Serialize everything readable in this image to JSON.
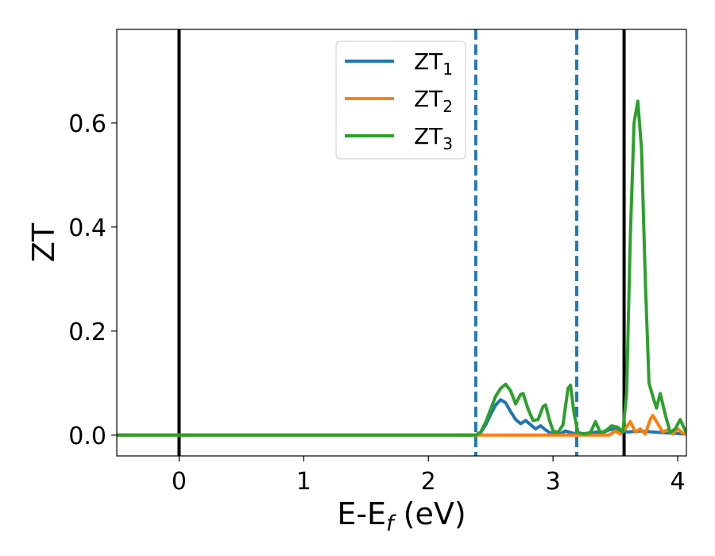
{
  "chart_data": {
    "type": "line",
    "xlabel": "E-E",
    "xlabel_sub": "f",
    "xlabel_unit": " (eV)",
    "ylabel": "ZT",
    "xlim": [
      -0.5,
      4.07
    ],
    "ylim": [
      -0.04,
      0.78
    ],
    "xticks": [
      0,
      1,
      2,
      3,
      4
    ],
    "xtick_labels": [
      "0",
      "1",
      "2",
      "3",
      "4"
    ],
    "yticks": [
      0.0,
      0.2,
      0.4,
      0.6
    ],
    "ytick_labels": [
      "0.0",
      "0.2",
      "0.4",
      "0.6"
    ],
    "legend_position": "upper-center",
    "grid": false,
    "vertical_lines": [
      {
        "x": 0.0,
        "style": "solid",
        "color": "#000000"
      },
      {
        "x": 3.57,
        "style": "solid",
        "color": "#000000"
      },
      {
        "x": 2.38,
        "style": "dashed",
        "color": "#1f77b4"
      },
      {
        "x": 3.19,
        "style": "dashed",
        "color": "#1f77b4"
      }
    ],
    "series": [
      {
        "name": "ZT",
        "name_sub": "1",
        "color": "#1f77b4",
        "x": [
          -0.5,
          2.38,
          2.42,
          2.46,
          2.5,
          2.54,
          2.58,
          2.62,
          2.66,
          2.7,
          2.74,
          2.78,
          2.82,
          2.86,
          2.9,
          2.94,
          2.98,
          3.02,
          3.06,
          3.1,
          3.14,
          3.19,
          3.25,
          3.3,
          3.35,
          3.4,
          3.45,
          3.5,
          3.55,
          3.6,
          3.7,
          3.8,
          4.07
        ],
        "y": [
          0,
          0,
          0.005,
          0.02,
          0.04,
          0.058,
          0.068,
          0.062,
          0.045,
          0.03,
          0.022,
          0.028,
          0.02,
          0.012,
          0.018,
          0.01,
          0.004,
          0.002,
          0.003,
          0.008,
          0.005,
          0.002,
          0.003,
          0.004,
          0.006,
          0.005,
          0.01,
          0.012,
          0.008,
          0.006,
          0.008,
          0.006,
          0.002
        ]
      },
      {
        "name": "ZT",
        "name_sub": "2",
        "color": "#ff7f0e",
        "x": [
          -0.5,
          3.45,
          3.5,
          3.54,
          3.58,
          3.62,
          3.66,
          3.7,
          3.74,
          3.78,
          3.8,
          3.84,
          3.88,
          3.92,
          3.96,
          4.0,
          4.04,
          4.07
        ],
        "y": [
          0,
          0,
          0.008,
          0.002,
          0.012,
          0.026,
          0.006,
          0.012,
          0.002,
          0.03,
          0.038,
          0.022,
          0.006,
          0.01,
          0.002,
          0.012,
          0.004,
          0.002
        ]
      },
      {
        "name": "ZT",
        "name_sub": "3",
        "color": "#2ca02c",
        "x": [
          -0.5,
          2.38,
          2.42,
          2.46,
          2.5,
          2.54,
          2.58,
          2.62,
          2.66,
          2.7,
          2.74,
          2.76,
          2.8,
          2.84,
          2.88,
          2.92,
          2.94,
          2.97,
          3.0,
          3.04,
          3.08,
          3.12,
          3.14,
          3.17,
          3.2,
          3.25,
          3.3,
          3.34,
          3.38,
          3.42,
          3.47,
          3.52,
          3.56,
          3.59,
          3.62,
          3.65,
          3.68,
          3.71,
          3.74,
          3.77,
          3.8,
          3.83,
          3.86,
          3.9,
          3.94,
          3.98,
          4.02,
          4.07
        ],
        "y": [
          0,
          0,
          0.006,
          0.025,
          0.05,
          0.075,
          0.09,
          0.098,
          0.085,
          0.06,
          0.078,
          0.08,
          0.05,
          0.028,
          0.03,
          0.055,
          0.058,
          0.03,
          0.008,
          0.005,
          0.02,
          0.09,
          0.096,
          0.04,
          0.005,
          0.002,
          0.005,
          0.026,
          0.005,
          0.008,
          0.018,
          0.015,
          0.006,
          0.08,
          0.38,
          0.6,
          0.642,
          0.55,
          0.3,
          0.1,
          0.075,
          0.052,
          0.08,
          0.04,
          0.005,
          0.012,
          0.03,
          0.004
        ]
      }
    ]
  }
}
